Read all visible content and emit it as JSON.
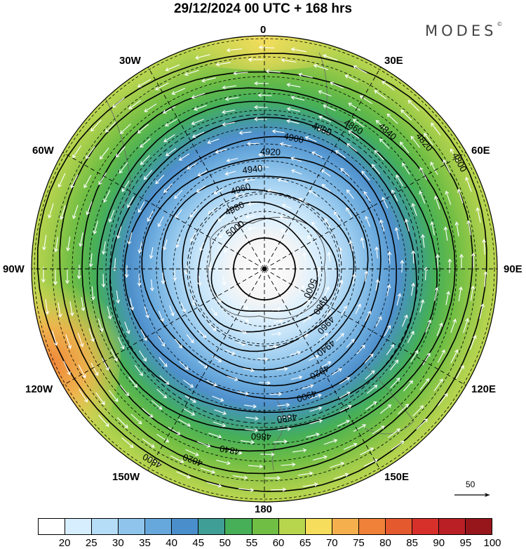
{
  "title": "29/12/2024  00 UTC  + 168 hrs",
  "brand": "MODES",
  "brand_mark": "©",
  "longitude_labels": [
    "0",
    "30E",
    "60E",
    "90E",
    "120E",
    "150E",
    "180",
    "150W",
    "120W",
    "90W",
    "60W",
    "30W"
  ],
  "reference_vector": {
    "value": "50"
  },
  "colorbar": {
    "labels": [
      "20",
      "25",
      "30",
      "35",
      "40",
      "45",
      "50",
      "55",
      "60",
      "65",
      "70",
      "75",
      "80",
      "85",
      "90",
      "95",
      "100"
    ],
    "colors": [
      "#ffffff",
      "#d6eefd",
      "#b6ddf7",
      "#8fc5ec",
      "#66a8dc",
      "#4a8fcb",
      "#3f9e96",
      "#46af58",
      "#70be43",
      "#b7d64e",
      "#f6dd5c",
      "#f5b04d",
      "#ef8238",
      "#e5592e",
      "#d7302a",
      "#bb1f26",
      "#96161c"
    ]
  },
  "contour_labels": [
    "4800",
    "4820",
    "4840",
    "4860",
    "4880",
    "4900",
    "4920",
    "4940",
    "4960",
    "4980",
    "5000"
  ],
  "colors": {
    "ice": "#f4f4f4",
    "contour": "#000000",
    "arrow": "#ffffff"
  }
}
